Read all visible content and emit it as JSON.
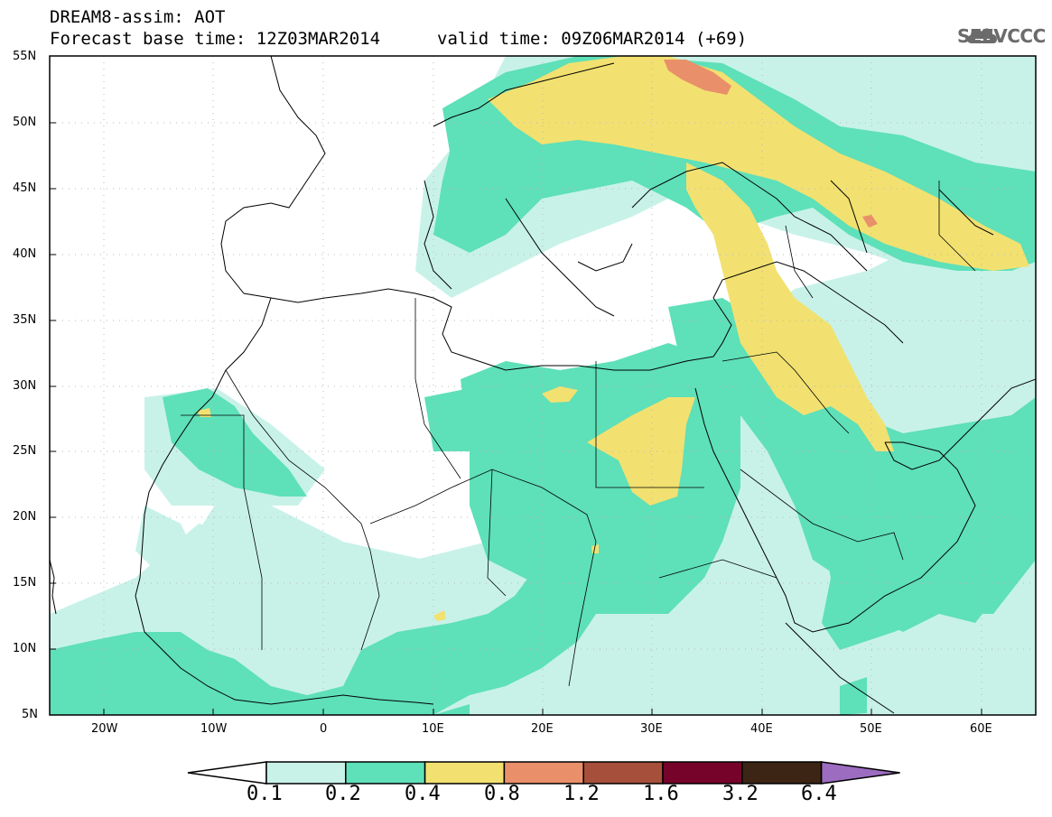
{
  "header": {
    "title_line1": "DREAM8-assim: AOT",
    "title_line2": "Forecast base time: 12Z03MAR2014",
    "valid_time": "valid time: 09Z06MAR2014 (+69)",
    "logo_text": "SEEVCCC"
  },
  "map": {
    "lat_labels": [
      "55N",
      "50N",
      "45N",
      "40N",
      "35N",
      "30N",
      "25N",
      "20N",
      "15N",
      "10N",
      "5N"
    ],
    "lon_labels": [
      "20W",
      "10W",
      "0",
      "10E",
      "20E",
      "30E",
      "40E",
      "50E",
      "60E"
    ]
  },
  "colorbar": {
    "labels": [
      "0.1",
      "0.2",
      "0.4",
      "0.8",
      "1.2",
      "1.6",
      "3.2",
      "6.4"
    ],
    "colors": [
      "#c8f2e8",
      "#5ee0b8",
      "#f2e170",
      "#e9906a",
      "#a6503b",
      "#76032a",
      "#3c2515",
      "#9b6cbf"
    ]
  },
  "colors": {
    "cat1": "#c8f2e8",
    "cat2": "#5ee0b8",
    "cat3": "#f2e170",
    "cat4": "#e9906a"
  }
}
